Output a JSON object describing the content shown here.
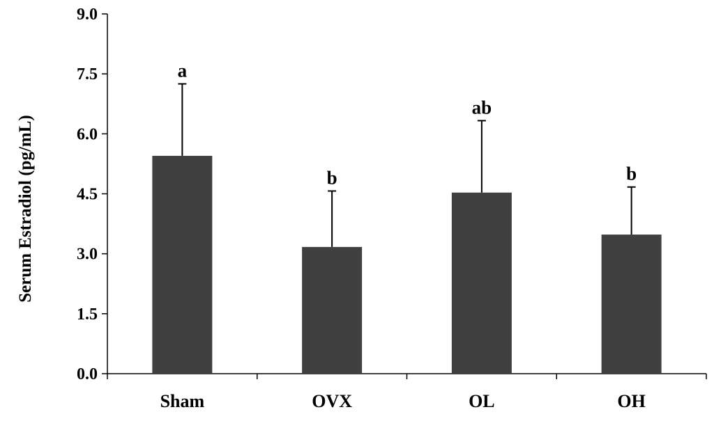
{
  "chart_data": {
    "type": "bar",
    "title": "",
    "xlabel": "",
    "ylabel": "Serum Estradiol (pg/mL)",
    "ylim": [
      0,
      9.0
    ],
    "yticks": [
      "0.0",
      "1.5",
      "3.0",
      "4.5",
      "6.0",
      "7.5",
      "9.0"
    ],
    "categories": [
      "Sham",
      "OVX",
      "OL",
      "OH"
    ],
    "values": [
      5.45,
      3.17,
      4.53,
      3.48
    ],
    "error_upper": [
      7.25,
      4.57,
      6.33,
      4.67
    ],
    "significance_labels": [
      "a",
      "b",
      "ab",
      "b"
    ],
    "grid": false,
    "legend": "none",
    "bar_color": "#404040"
  }
}
